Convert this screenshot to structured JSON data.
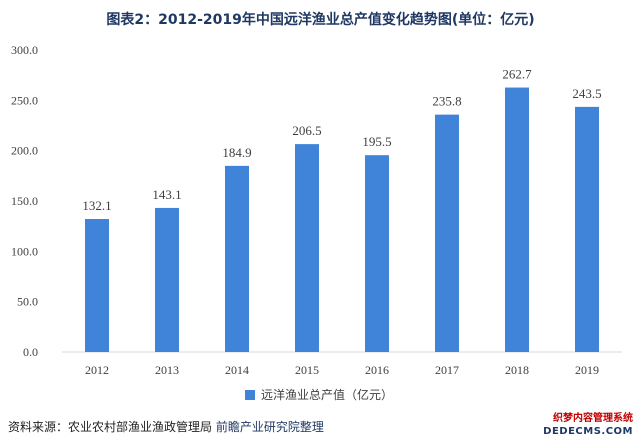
{
  "title": "图表2：2012-2019年中国远洋渔业总产值变化趋势图(单位：亿元)",
  "source": {
    "label": "资料来源：",
    "text": "农业农村部渔业渔政管理局",
    "org": "前瞻产业研究院整理"
  },
  "badge": {
    "line1": "织梦内容管理系统",
    "line2": "DEDECMS.COM"
  },
  "colors": {
    "bar": "#3f84d9",
    "axis": "#d9d9d9"
  },
  "chart_data": {
    "type": "bar",
    "title": "图表2：2012-2019年中国远洋渔业总产值变化趋势图(单位：亿元)",
    "categories": [
      "2012",
      "2013",
      "2014",
      "2015",
      "2016",
      "2017",
      "2018",
      "2019"
    ],
    "series": [
      {
        "name": "远洋渔业总产值（亿元）",
        "values": [
          132.1,
          143.1,
          184.9,
          206.5,
          195.5,
          235.8,
          262.7,
          243.5
        ]
      }
    ],
    "value_labels": [
      "132.1",
      "143.1",
      "184.9",
      "206.5",
      "195.5",
      "235.8",
      "262.7",
      "243.5"
    ],
    "y_ticks": [
      "0.0",
      "50.0",
      "100.0",
      "150.0",
      "200.0",
      "250.0",
      "300.0"
    ],
    "ylim": [
      0,
      300
    ],
    "grid": false,
    "legend_position": "bottom-center"
  }
}
